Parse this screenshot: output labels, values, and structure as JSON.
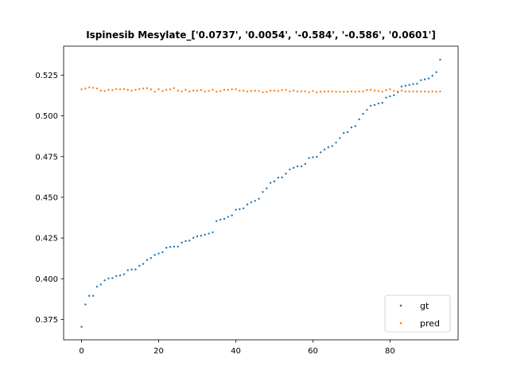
{
  "chart_data": {
    "type": "scatter",
    "title": "Ispinesib Mesylate_['0.0737', '0.0054', '-0.584', '-0.586', '0.0601']",
    "xlabel": "",
    "ylabel": "",
    "xlim": [
      -4.65,
      97.65
    ],
    "ylim": [
      0.3625,
      0.5428
    ],
    "xticks": [
      0,
      20,
      40,
      60,
      80
    ],
    "yticks": [
      0.375,
      0.4,
      0.425,
      0.45,
      0.475,
      0.5,
      0.525
    ],
    "ytick_labels": [
      "0.375",
      "0.400",
      "0.425",
      "0.450",
      "0.475",
      "0.500",
      "0.525"
    ],
    "grid": false,
    "legend_position": "lower right",
    "series": [
      {
        "name": "gt",
        "color": "#1f77b4",
        "x": [
          0,
          1,
          2,
          3,
          4,
          5,
          6,
          7,
          8,
          9,
          10,
          11,
          12,
          13,
          14,
          15,
          16,
          17,
          18,
          19,
          20,
          21,
          22,
          23,
          24,
          25,
          26,
          27,
          28,
          29,
          30,
          31,
          32,
          33,
          34,
          35,
          36,
          37,
          38,
          39,
          40,
          41,
          42,
          43,
          44,
          45,
          46,
          47,
          48,
          49,
          50,
          51,
          52,
          53,
          54,
          55,
          56,
          57,
          58,
          59,
          60,
          61,
          62,
          63,
          64,
          65,
          66,
          67,
          68,
          69,
          70,
          71,
          72,
          73,
          74,
          75,
          76,
          77,
          78,
          79,
          80,
          81,
          82,
          83,
          84,
          85,
          86,
          87,
          88,
          89,
          90,
          91,
          92,
          93
        ],
        "y": [
          0.3705,
          0.3842,
          0.3895,
          0.3895,
          0.3951,
          0.3965,
          0.399,
          0.4002,
          0.4004,
          0.4017,
          0.402,
          0.4027,
          0.4052,
          0.4057,
          0.4057,
          0.4079,
          0.4091,
          0.4115,
          0.4127,
          0.4146,
          0.4155,
          0.4163,
          0.419,
          0.4195,
          0.4197,
          0.4197,
          0.4222,
          0.4231,
          0.4234,
          0.4251,
          0.4261,
          0.4265,
          0.4271,
          0.4277,
          0.4285,
          0.4354,
          0.4363,
          0.4368,
          0.438,
          0.4389,
          0.4424,
          0.4427,
          0.4432,
          0.4456,
          0.4469,
          0.4478,
          0.4491,
          0.4533,
          0.4555,
          0.4589,
          0.4598,
          0.462,
          0.4622,
          0.4645,
          0.4671,
          0.4681,
          0.469,
          0.469,
          0.4705,
          0.4741,
          0.4746,
          0.4749,
          0.4776,
          0.4793,
          0.4807,
          0.4815,
          0.4836,
          0.4864,
          0.4895,
          0.49,
          0.4929,
          0.4937,
          0.4979,
          0.5012,
          0.5037,
          0.5062,
          0.5067,
          0.5076,
          0.508,
          0.5112,
          0.512,
          0.5127,
          0.5145,
          0.518,
          0.5185,
          0.519,
          0.5195,
          0.5197,
          0.5219,
          0.5224,
          0.5229,
          0.5246,
          0.5268,
          0.5345
        ]
      },
      {
        "name": "pred",
        "color": "#ff7f0e",
        "x": [
          0,
          1,
          2,
          3,
          4,
          5,
          6,
          7,
          8,
          9,
          10,
          11,
          12,
          13,
          14,
          15,
          16,
          17,
          18,
          19,
          20,
          21,
          22,
          23,
          24,
          25,
          26,
          27,
          28,
          29,
          30,
          31,
          32,
          33,
          34,
          35,
          36,
          37,
          38,
          39,
          40,
          41,
          42,
          43,
          44,
          45,
          46,
          47,
          48,
          49,
          50,
          51,
          52,
          53,
          54,
          55,
          56,
          57,
          58,
          59,
          60,
          61,
          62,
          63,
          64,
          65,
          66,
          67,
          68,
          69,
          70,
          71,
          72,
          73,
          74,
          75,
          76,
          77,
          78,
          79,
          80,
          81,
          82,
          83,
          84,
          85,
          86,
          87,
          88,
          89,
          90,
          91,
          92,
          93
        ],
        "y": [
          0.5163,
          0.5168,
          0.5175,
          0.5172,
          0.5168,
          0.5155,
          0.5153,
          0.516,
          0.5158,
          0.5165,
          0.5163,
          0.5165,
          0.516,
          0.5155,
          0.516,
          0.5165,
          0.5168,
          0.517,
          0.5163,
          0.5148,
          0.5163,
          0.5153,
          0.516,
          0.5163,
          0.517,
          0.5155,
          0.515,
          0.516,
          0.515,
          0.5155,
          0.5155,
          0.5158,
          0.515,
          0.5153,
          0.516,
          0.5148,
          0.5153,
          0.516,
          0.516,
          0.5163,
          0.5163,
          0.5155,
          0.5155,
          0.515,
          0.5153,
          0.5155,
          0.5153,
          0.5145,
          0.5148,
          0.5155,
          0.5155,
          0.5153,
          0.5158,
          0.516,
          0.515,
          0.5155,
          0.515,
          0.515,
          0.515,
          0.5145,
          0.5153,
          0.5145,
          0.5148,
          0.515,
          0.515,
          0.515,
          0.5148,
          0.5148,
          0.5148,
          0.5148,
          0.515,
          0.5148,
          0.515,
          0.515,
          0.5158,
          0.516,
          0.5155,
          0.5153,
          0.5148,
          0.5158,
          0.5163,
          0.5153,
          0.515,
          0.5155,
          0.515,
          0.515,
          0.515,
          0.515,
          0.515,
          0.515,
          0.5148,
          0.515,
          0.5148,
          0.515
        ]
      }
    ]
  }
}
